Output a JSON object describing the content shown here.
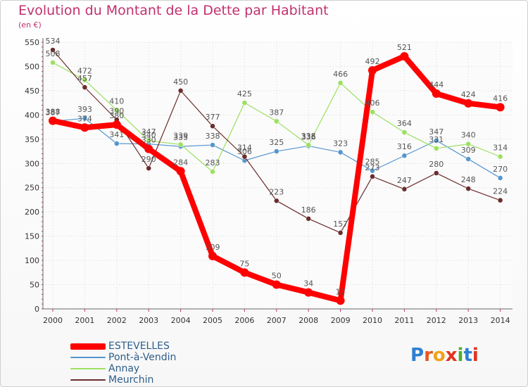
{
  "header": {
    "title": "Evolution du Montant de la Dette par Habitant",
    "unit": "(en €)"
  },
  "logo": {
    "text": "Proxiti"
  },
  "colors": {
    "ESTEVELLES": "#ff0000",
    "Pont-à-Vendin": "#5596cf",
    "Annay": "#9be05f",
    "Meurchin": "#6b2c2c"
  },
  "chart_data": {
    "type": "line",
    "title": "Evolution du Montant de la Dette par Habitant",
    "ylabel": "(en €)",
    "xlabel": "",
    "x": [
      2000,
      2001,
      2002,
      2003,
      2004,
      2005,
      2006,
      2007,
      2008,
      2009,
      2010,
      2011,
      2012,
      2013,
      2014
    ],
    "ylim": [
      0,
      550
    ],
    "yticks": [
      0,
      50,
      100,
      150,
      200,
      250,
      300,
      350,
      400,
      450,
      500,
      550
    ],
    "legend_position": "bottom-left",
    "series": [
      {
        "name": "ESTEVELLES",
        "values": [
          388,
          374,
          380,
          330,
          284,
          109,
          75,
          50,
          34,
          17,
          492,
          521,
          444,
          424,
          416
        ]
      },
      {
        "name": "Pont-à-Vendin",
        "values": [
          387,
          393,
          341,
          340,
          335,
          338,
          306,
          325,
          336,
          323,
          285,
          316,
          347,
          309,
          270
        ]
      },
      {
        "name": "Annay",
        "values": [
          508,
          472,
          410,
          347,
          339,
          283,
          425,
          387,
          338,
          466,
          406,
          364,
          331,
          340,
          314
        ]
      },
      {
        "name": "Meurchin",
        "values": [
          534,
          457,
          390,
          290,
          450,
          377,
          314,
          223,
          186,
          157,
          273,
          247,
          280,
          248,
          224
        ]
      }
    ]
  }
}
